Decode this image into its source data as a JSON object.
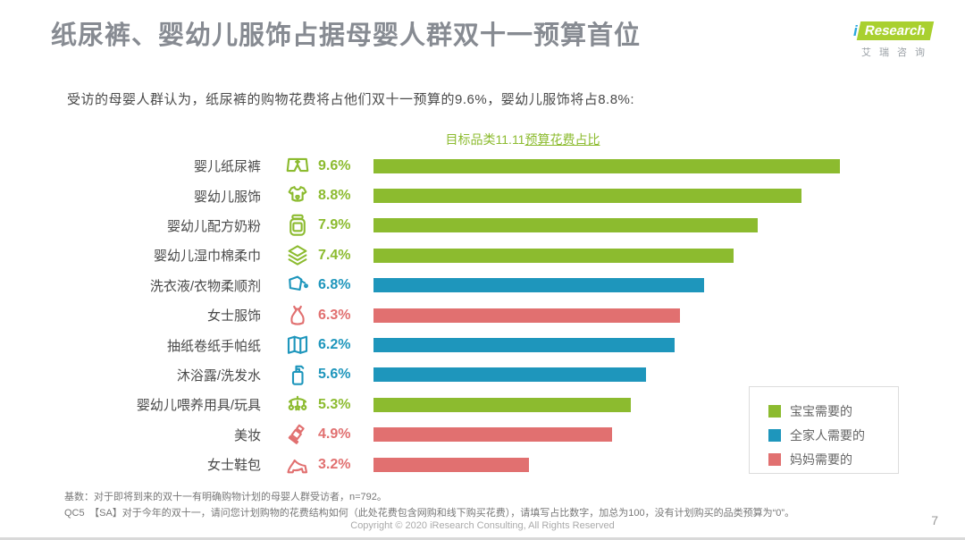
{
  "header": {
    "title": "纸尿裤、婴幼儿服饰占据母婴人群双十一预算首位",
    "logo": {
      "brand_i": "i",
      "brand_rest": "Research",
      "brand_cn": "艾瑞咨询"
    }
  },
  "intro": "受访的母婴人群认为，纸尿裤的购物花费将占他们双十一预算的9.6%，婴幼儿服饰将占8.8%:",
  "chart": {
    "title_plain": "目标品类11.11",
    "title_underlined": "预算花费占比"
  },
  "colors": {
    "baby": "#8CBB2F",
    "family": "#1E96BC",
    "mom": "#E17070"
  },
  "chart_data": {
    "type": "bar",
    "orientation": "horizontal",
    "title": "目标品类11.11预算花费占比",
    "xlabel": "",
    "ylabel": "",
    "xlim": [
      0,
      10
    ],
    "grid": false,
    "categories": [
      "婴儿纸尿裤",
      "婴幼儿服饰",
      "婴幼儿配方奶粉",
      "婴幼儿湿巾棉柔巾",
      "洗衣液/衣物柔顺剂",
      "女士服饰",
      "抽纸卷纸手帕纸",
      "沐浴露/洗发水",
      "婴幼儿喂养用具/玩具",
      "美妆",
      "女士鞋包"
    ],
    "values": [
      9.6,
      8.8,
      7.9,
      7.4,
      6.8,
      6.3,
      6.2,
      5.6,
      5.3,
      4.9,
      3.2
    ],
    "value_labels": [
      "9.6%",
      "8.8%",
      "7.9%",
      "7.4%",
      "6.8%",
      "6.3%",
      "6.2%",
      "5.6%",
      "5.3%",
      "4.9%",
      "3.2%"
    ],
    "groups": [
      "baby",
      "baby",
      "baby",
      "baby",
      "family",
      "mom",
      "family",
      "family",
      "baby",
      "mom",
      "mom"
    ],
    "icons": [
      "diaper-icon",
      "onesie-icon",
      "milk-jar-icon",
      "wipes-icon",
      "detergent-icon",
      "dress-icon",
      "tissue-icon",
      "shampoo-icon",
      "mobile-toy-icon",
      "lipstick-icon",
      "heel-icon"
    ],
    "legend_position": "bottom-right",
    "legend": [
      {
        "label": "宝宝需要的",
        "group": "baby",
        "color": "#8CBB2F"
      },
      {
        "label": "全家人需要的",
        "group": "family",
        "color": "#1E96BC"
      },
      {
        "label": "妈妈需要的",
        "group": "mom",
        "color": "#E17070"
      }
    ]
  },
  "footer": {
    "base_note": "基数：对于即将到来的双十一有明确购物计划的母婴人群受访者，n=792。",
    "question_note": "QC5　【SA】对于今年的双十一，请问您计划购物的花费结构如何（此处花费包含网购和线下购买花费），请填写占比数字，加总为100，没有计划购买的品类预算为“0”。",
    "copyright": "Copyright © 2020 iResearch Consulting, All Rights Reserved",
    "page_number": "7"
  }
}
